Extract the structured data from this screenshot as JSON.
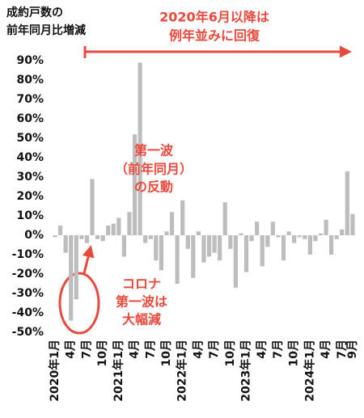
{
  "chart_data": {
    "type": "bar",
    "title_lines": [
      "成約戸数の",
      "前年同月比増減"
    ],
    "categories": [
      "2020年1月",
      null,
      null,
      "4月",
      null,
      null,
      "7月",
      null,
      null,
      "10月",
      null,
      null,
      "2021年1月",
      null,
      null,
      "4月",
      null,
      null,
      "7月",
      null,
      null,
      "10月",
      null,
      null,
      "2022年1月",
      null,
      null,
      "4月",
      null,
      null,
      "7月",
      null,
      null,
      "10月",
      null,
      null,
      "2023年1月",
      null,
      null,
      "4月",
      null,
      null,
      "7月",
      null,
      null,
      "10月",
      null,
      null,
      "2024年1月",
      null,
      null,
      "4月",
      null,
      null,
      "7月",
      null,
      "9月"
    ],
    "values": [
      -1,
      5,
      -9,
      -44,
      -33,
      -2,
      -4,
      29,
      -2,
      -3,
      5,
      6,
      9,
      -11,
      12,
      52,
      89,
      -4,
      -2,
      -13,
      -18,
      2,
      12,
      -25,
      18,
      -7,
      -22,
      2,
      -14,
      -11,
      -9,
      -13,
      17,
      -7,
      -27,
      1,
      -19,
      -3,
      7,
      -16,
      -6,
      7,
      -1,
      -13,
      2,
      -4,
      -1,
      -2,
      -10,
      -3,
      1,
      8,
      -10,
      -2,
      3,
      33,
      11
    ],
    "color": "#bdbdbd",
    "ylim": [
      -50,
      90
    ],
    "yticks": [
      {
        "value": -50,
        "label": "-50%"
      },
      {
        "value": -40,
        "label": "-40%"
      },
      {
        "value": -30,
        "label": "-30%"
      },
      {
        "value": -20,
        "label": "-20%"
      },
      {
        "value": -10,
        "label": "-10%"
      },
      {
        "value": 0,
        "label": "0%"
      },
      {
        "value": 10,
        "label": "10%"
      },
      {
        "value": 20,
        "label": "20%"
      },
      {
        "value": 30,
        "label": "30%"
      },
      {
        "value": 40,
        "label": "40%"
      },
      {
        "value": 50,
        "label": "50%"
      },
      {
        "value": 60,
        "label": "60%"
      },
      {
        "value": 70,
        "label": "70%"
      },
      {
        "value": 80,
        "label": "80%"
      },
      {
        "value": 90,
        "label": "90%"
      }
    ],
    "annotations": [
      {
        "lines": [
          "2020年6月以降は",
          "例年並みに回復"
        ]
      },
      {
        "lines": [
          "第一波",
          "（前年同月）",
          "の反動"
        ]
      },
      {
        "lines": [
          "コロナ",
          "第一波は",
          "大幅減"
        ]
      }
    ]
  }
}
